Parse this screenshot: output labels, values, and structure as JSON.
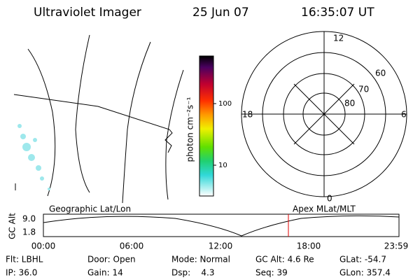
{
  "header": {
    "instrument": "Ultraviolet Imager",
    "date": "25 Jun 07",
    "time": "16:35:07 UT"
  },
  "colorbar": {
    "label": "photon cm⁻²s⁻¹",
    "ticks": [
      "100",
      "10"
    ]
  },
  "polar": {
    "labels": [
      "12",
      "18",
      "6",
      "0",
      "60",
      "70",
      "80"
    ]
  },
  "timeline": {
    "left_label": "Geographic Lat/Lon",
    "right_label": "Apex MLat/MLT",
    "axis_label": "GC Alt",
    "y_labels": [
      "9.0",
      "1.8"
    ],
    "x_labels": [
      "00:00",
      "06:00",
      "12:00",
      "18:00",
      "23:59"
    ]
  },
  "status": [
    [
      "Flt: LBHL",
      "Door: Open",
      "Mode: Normal",
      "GC Alt: 4.6 Re",
      "GLat: -54.7"
    ],
    [
      "IP: 36.0",
      "Gain: 14",
      "Dsp:    4.3",
      "Seq: 39",
      "GLon: 357.4"
    ]
  ]
}
